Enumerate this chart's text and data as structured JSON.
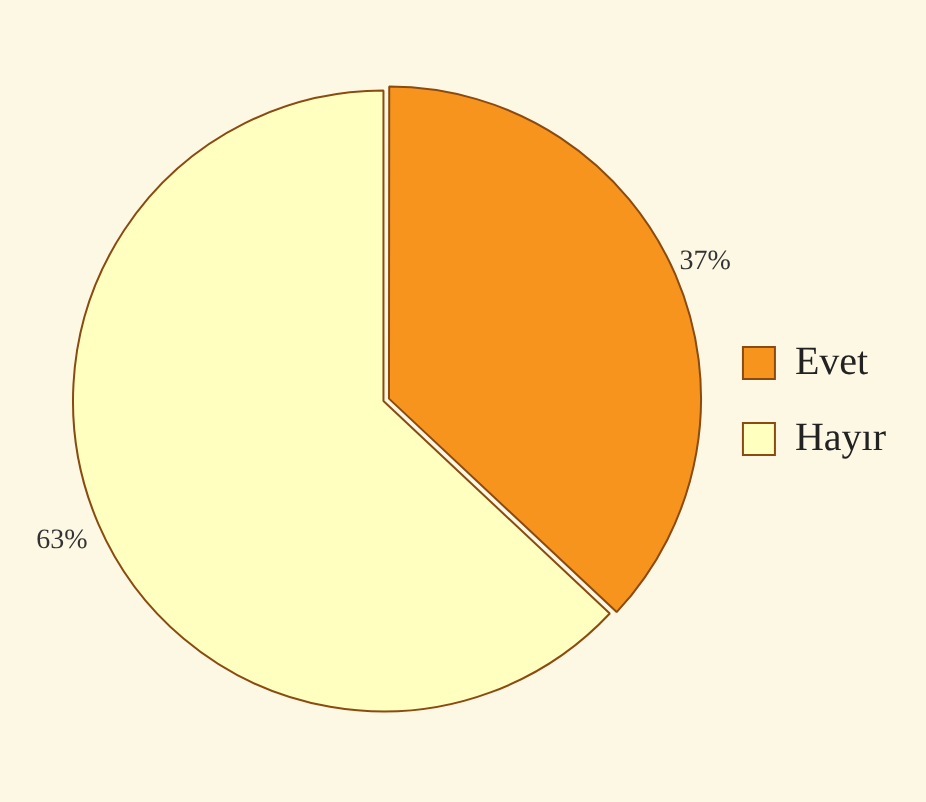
{
  "chart_data": {
    "type": "pie",
    "categories": [
      "Evet",
      "Hayır"
    ],
    "values": [
      37,
      63
    ],
    "colors": [
      "#f7941d",
      "#ffffc0"
    ],
    "value_labels": [
      "37%",
      "63%"
    ],
    "legend": "right"
  }
}
